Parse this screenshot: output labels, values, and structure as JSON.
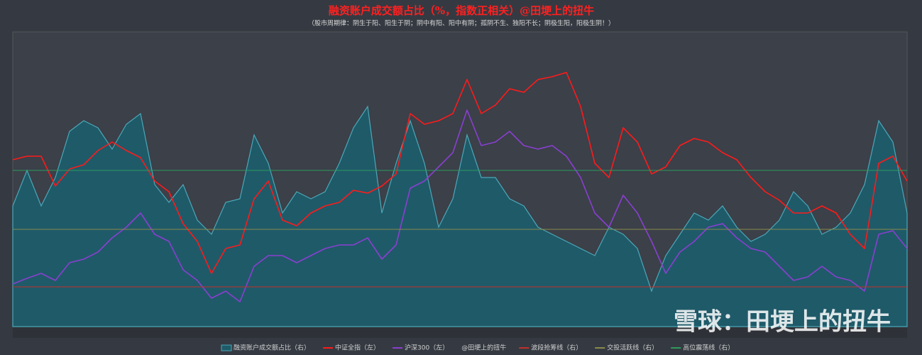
{
  "chart_data": {
    "type": "line",
    "title": "融资账户成交额占比（%，指数正相关）@田埂上的扭牛",
    "subtitle": "（股市周期律：阴生于阳、阳生于阴；阴中有阳、阳中有阴；孤阴不生、独阳不长；阴极生阳，阳极生阴！）",
    "ylim": [
      2500,
      6650
    ],
    "y2lim": [
      5.85,
      14.15
    ],
    "series": [
      {
        "name": "融资账户成交额占比（右）",
        "type": "area",
        "axis": "y2",
        "color": "#4aa8b8",
        "fill": "#1f5a69",
        "values": [
          9.25,
          10.25,
          9.25,
          10.05,
          11.35,
          11.65,
          11.45,
          10.85,
          11.55,
          11.85,
          9.85,
          9.35,
          9.85,
          8.85,
          8.45,
          9.35,
          9.45,
          11.25,
          10.45,
          9.05,
          9.65,
          9.45,
          9.65,
          10.45,
          11.45,
          12.05,
          9.05,
          10.45,
          11.65,
          10.45,
          8.65,
          9.45,
          11.25,
          10.05,
          10.05,
          9.45,
          9.25,
          8.65,
          8.45,
          8.25,
          8.05,
          7.85,
          8.65,
          8.45,
          8.05,
          6.85,
          7.85,
          8.45,
          9.05,
          8.85,
          9.25,
          8.65,
          8.25,
          8.45,
          8.85,
          9.65,
          9.25,
          8.45,
          8.65,
          9.05,
          9.85,
          11.65,
          11.05,
          9.05
        ]
      },
      {
        "name": "中证全指（左）",
        "type": "line",
        "axis": "y",
        "color": "#ff1a1a",
        "values": [
          4850,
          4900,
          4900,
          4480,
          4720,
          4780,
          4980,
          5100,
          4980,
          4880,
          4550,
          4400,
          3950,
          3700,
          3250,
          3600,
          3650,
          4300,
          4550,
          4000,
          3920,
          4100,
          4200,
          4250,
          4420,
          4380,
          4480,
          4650,
          5500,
          5350,
          5400,
          5500,
          5980,
          5500,
          5620,
          5850,
          5800,
          5980,
          6020,
          6080,
          5600,
          4800,
          4600,
          5300,
          5100,
          4650,
          4750,
          5050,
          5150,
          5100,
          4950,
          4850,
          4600,
          4400,
          4280,
          4100,
          4100,
          4200,
          4100,
          3800,
          3600,
          4800,
          4900,
          4550
        ]
      },
      {
        "name": "沪深300（左）",
        "type": "line",
        "axis": "y",
        "color": "#8a3fd0",
        "values": [
          3100,
          3180,
          3250,
          3150,
          3400,
          3450,
          3550,
          3750,
          3900,
          4100,
          3800,
          3700,
          3300,
          3150,
          2900,
          3000,
          2850,
          3350,
          3500,
          3500,
          3400,
          3500,
          3600,
          3650,
          3650,
          3750,
          3450,
          3650,
          4450,
          4550,
          4750,
          4950,
          5550,
          5050,
          5100,
          5250,
          5050,
          5000,
          5050,
          4900,
          4600,
          4100,
          3900,
          4350,
          4100,
          3700,
          3250,
          3550,
          3700,
          3900,
          3950,
          3750,
          3600,
          3550,
          3350,
          3150,
          3200,
          3350,
          3200,
          3150,
          3000,
          3800,
          3850,
          3600
        ]
      }
    ],
    "legend_note": "@田埂上的扭牛",
    "reference_lines": [
      {
        "name": "波段抢筹线（右）",
        "axis": "y2",
        "color": "#c0302a",
        "value": 6.97
      },
      {
        "name": "交投活跃线（右）",
        "axis": "y2",
        "color": "#8a8a4a",
        "value": 8.59
      },
      {
        "name": "高位震荡线（右）",
        "axis": "y2",
        "color": "#2e9a5a",
        "value": 10.25
      }
    ],
    "watermark": "雪球：田埂上的扭牛"
  }
}
